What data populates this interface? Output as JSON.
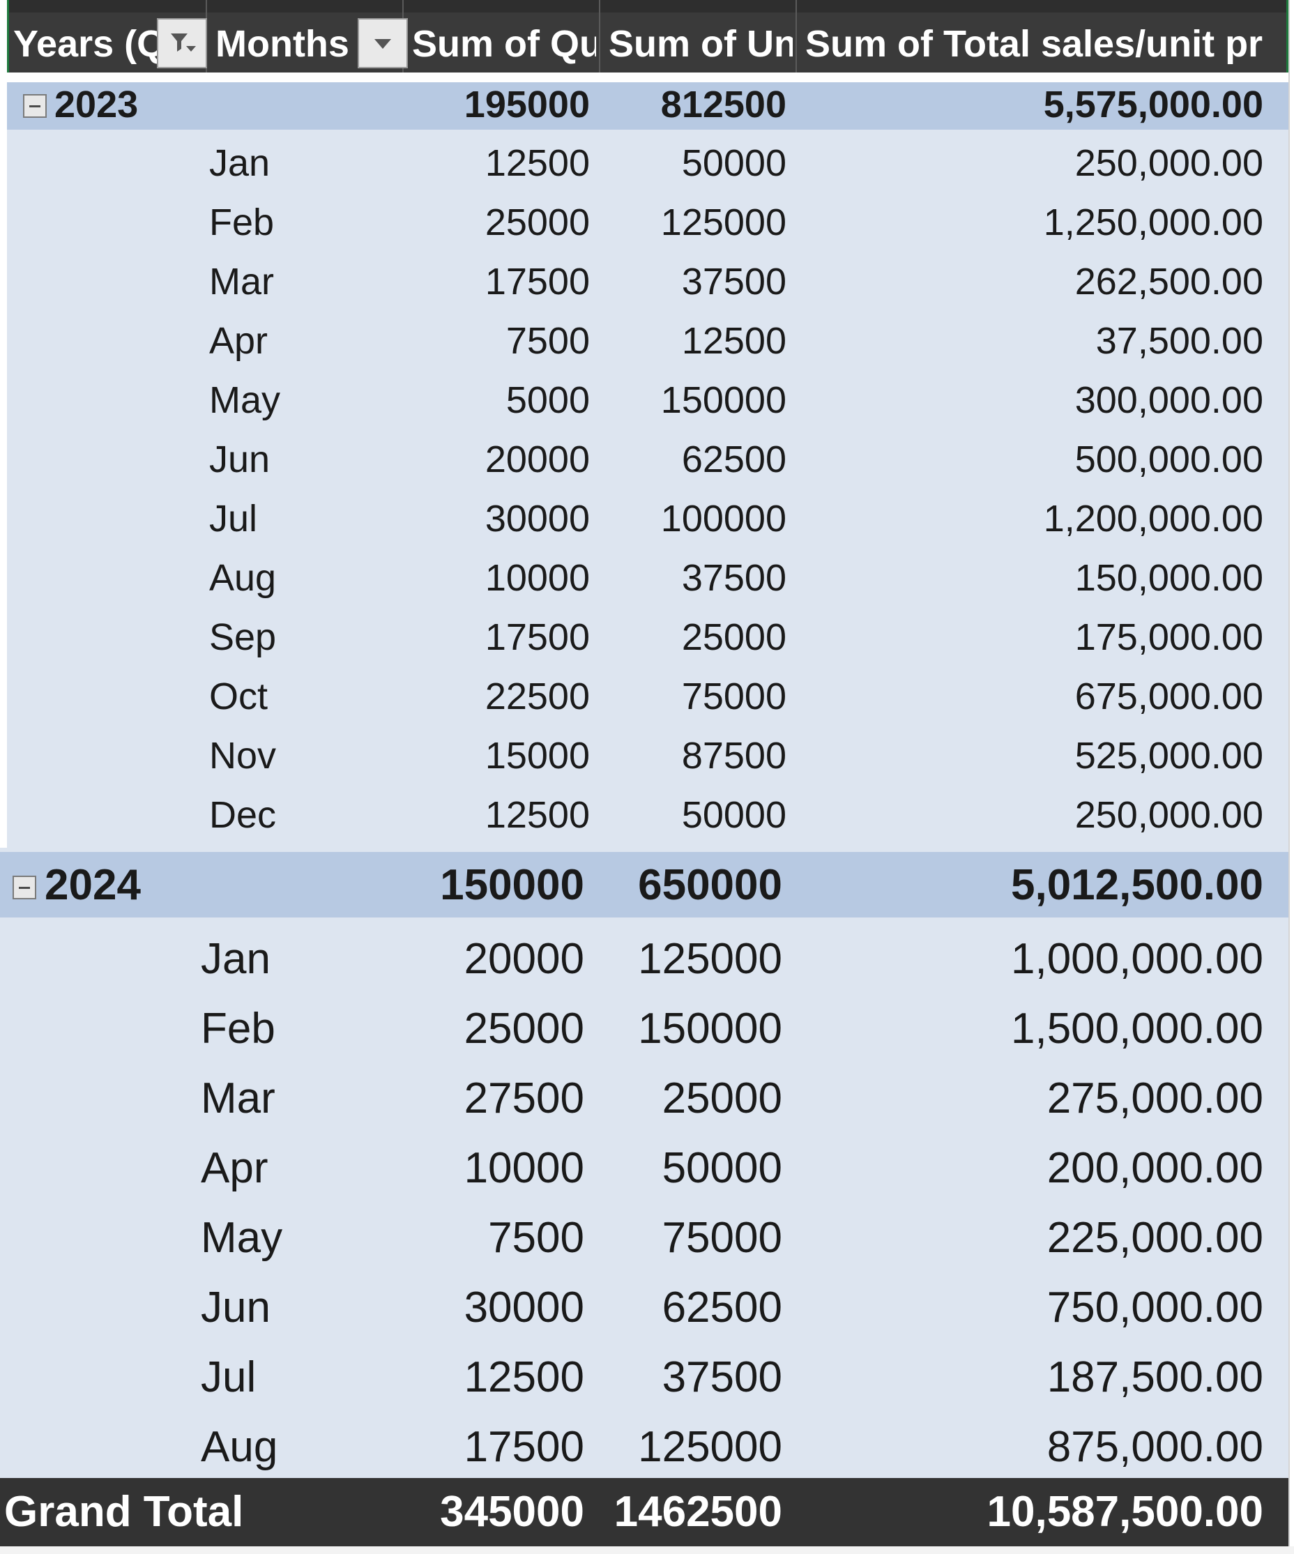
{
  "headers": {
    "years": "Years (Q",
    "months": "Months",
    "sum_qty": "Sum of Qu",
    "sum_unit": "Sum of Un",
    "sum_total": "Sum of Total sales/unit pr"
  },
  "years": [
    {
      "label": "2023",
      "sum_qty": "195000",
      "sum_unit": "812500",
      "sum_total": "5,575,000.00",
      "months": [
        {
          "month": "Jan",
          "qty": "12500",
          "unit": "50000",
          "total": "250,000.00"
        },
        {
          "month": "Feb",
          "qty": "25000",
          "unit": "125000",
          "total": "1,250,000.00"
        },
        {
          "month": "Mar",
          "qty": "17500",
          "unit": "37500",
          "total": "262,500.00"
        },
        {
          "month": "Apr",
          "qty": "7500",
          "unit": "12500",
          "total": "37,500.00"
        },
        {
          "month": "May",
          "qty": "5000",
          "unit": "150000",
          "total": "300,000.00"
        },
        {
          "month": "Jun",
          "qty": "20000",
          "unit": "62500",
          "total": "500,000.00"
        },
        {
          "month": "Jul",
          "qty": "30000",
          "unit": "100000",
          "total": "1,200,000.00"
        },
        {
          "month": "Aug",
          "qty": "10000",
          "unit": "37500",
          "total": "150,000.00"
        },
        {
          "month": "Sep",
          "qty": "17500",
          "unit": "25000",
          "total": "175,000.00"
        },
        {
          "month": "Oct",
          "qty": "22500",
          "unit": "75000",
          "total": "675,000.00"
        },
        {
          "month": "Nov",
          "qty": "15000",
          "unit": "87500",
          "total": "525,000.00"
        },
        {
          "month": "Dec",
          "qty": "12500",
          "unit": "50000",
          "total": "250,000.00"
        }
      ]
    },
    {
      "label": "2024",
      "sum_qty": "150000",
      "sum_unit": "650000",
      "sum_total": "5,012,500.00",
      "months": [
        {
          "month": "Jan",
          "qty": "20000",
          "unit": "125000",
          "total": "1,000,000.00"
        },
        {
          "month": "Feb",
          "qty": "25000",
          "unit": "150000",
          "total": "1,500,000.00"
        },
        {
          "month": "Mar",
          "qty": "27500",
          "unit": "25000",
          "total": "275,000.00"
        },
        {
          "month": "Apr",
          "qty": "10000",
          "unit": "50000",
          "total": "200,000.00"
        },
        {
          "month": "May",
          "qty": "7500",
          "unit": "75000",
          "total": "225,000.00"
        },
        {
          "month": "Jun",
          "qty": "30000",
          "unit": "62500",
          "total": "750,000.00"
        },
        {
          "month": "Jul",
          "qty": "12500",
          "unit": "37500",
          "total": "187,500.00"
        },
        {
          "month": "Aug",
          "qty": "17500",
          "unit": "125000",
          "total": "875,000.00"
        }
      ]
    }
  ],
  "grand_total": {
    "label": "Grand Total",
    "qty": "345000",
    "unit": "1462500",
    "total": "10,587,500.00"
  }
}
